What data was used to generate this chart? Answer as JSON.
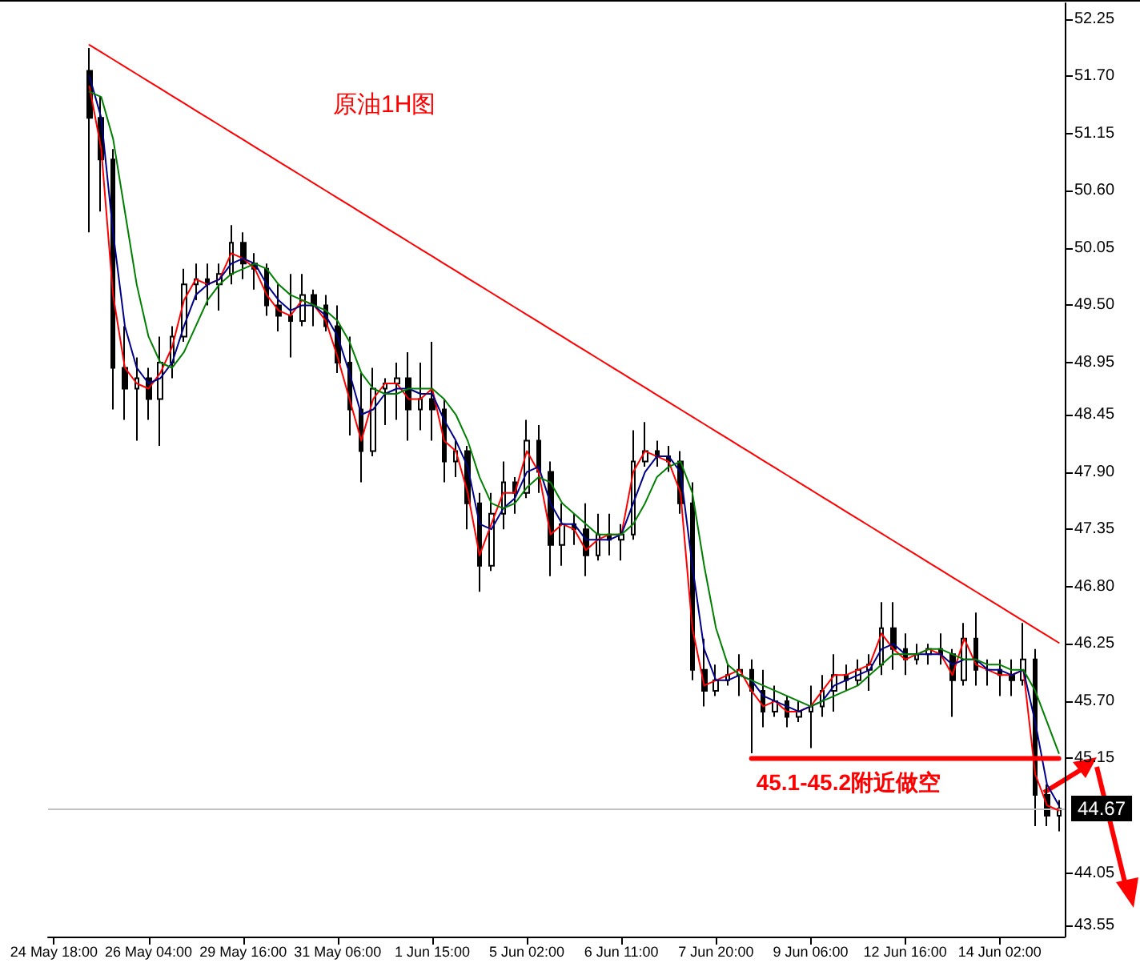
{
  "chart_data": {
    "type": "candlestick",
    "title": "原油1H图",
    "color": "#000000",
    "categories": [
      "24 May 18:00",
      null,
      null,
      null,
      null,
      null,
      null,
      null,
      "26 May 04:00",
      null,
      null,
      null,
      null,
      null,
      null,
      null,
      "29 May 16:00",
      null,
      null,
      null,
      null,
      null,
      null,
      null,
      "31 May 06:00",
      null,
      null,
      null,
      null,
      null,
      null,
      null,
      "1 Jun 15:00",
      null,
      null,
      null,
      null,
      null,
      null,
      null,
      "5 Jun 02:00",
      null,
      null,
      null,
      null,
      null,
      null,
      null,
      "6 Jun 11:00",
      null,
      null,
      null,
      null,
      null,
      null,
      null,
      "7 Jun 20:00",
      null,
      null,
      null,
      null,
      null,
      null,
      null,
      "9 Jun 06:00",
      null,
      null,
      null,
      null,
      null,
      null,
      null,
      "12 Jun 16:00",
      null,
      null,
      null,
      null,
      null,
      null,
      null,
      "14 Jun 02:00",
      null,
      null,
      null,
      null,
      null
    ],
    "ohlc": [
      null,
      null,
      null,
      [
        51.75,
        51.97,
        50.2,
        51.3
      ],
      [
        51.3,
        51.5,
        50.4,
        50.9
      ],
      [
        50.9,
        51.0,
        48.5,
        48.9
      ],
      [
        48.9,
        49.3,
        48.4,
        48.7
      ],
      [
        48.7,
        49.0,
        48.2,
        48.8
      ],
      [
        48.8,
        48.9,
        48.4,
        48.6
      ],
      [
        48.6,
        49.2,
        48.15,
        48.95
      ],
      [
        48.95,
        49.3,
        48.8,
        49.2
      ],
      [
        49.2,
        49.85,
        49.15,
        49.7
      ],
      [
        49.7,
        49.9,
        49.55,
        49.75
      ],
      [
        49.75,
        49.9,
        49.5,
        49.7
      ],
      [
        49.7,
        49.9,
        49.45,
        49.8
      ],
      [
        49.8,
        50.27,
        49.7,
        50.1
      ],
      [
        50.1,
        50.2,
        49.75,
        49.9
      ],
      [
        49.9,
        50.0,
        49.65,
        49.85
      ],
      [
        49.85,
        49.9,
        49.4,
        49.5
      ],
      [
        49.5,
        49.7,
        49.25,
        49.4
      ],
      [
        49.4,
        49.8,
        49.0,
        49.35
      ],
      [
        49.35,
        49.8,
        49.3,
        49.6
      ],
      [
        49.6,
        49.65,
        49.3,
        49.5
      ],
      [
        49.5,
        49.6,
        49.25,
        49.3
      ],
      [
        49.3,
        49.5,
        48.85,
        48.95
      ],
      [
        48.95,
        49.2,
        48.25,
        48.5
      ],
      [
        48.5,
        48.85,
        47.8,
        48.1
      ],
      [
        48.1,
        48.9,
        48.05,
        48.7
      ],
      [
        48.7,
        48.8,
        48.35,
        48.75
      ],
      [
        48.75,
        48.95,
        48.4,
        48.8
      ],
      [
        48.8,
        49.05,
        48.2,
        48.5
      ],
      [
        48.5,
        48.95,
        48.3,
        48.6
      ],
      [
        48.6,
        49.15,
        48.2,
        48.5
      ],
      [
        48.5,
        48.6,
        47.8,
        48.0
      ],
      [
        48.0,
        48.2,
        47.85,
        48.1
      ],
      [
        48.1,
        48.15,
        47.35,
        47.6
      ],
      [
        47.6,
        47.7,
        46.75,
        47.0
      ],
      [
        47.0,
        47.7,
        46.95,
        47.5
      ],
      [
        47.5,
        48.0,
        47.35,
        47.8
      ],
      [
        47.8,
        47.85,
        47.5,
        47.7
      ],
      [
        47.7,
        48.4,
        47.65,
        48.2
      ],
      [
        48.2,
        48.35,
        47.7,
        47.9
      ],
      [
        47.9,
        48.0,
        46.9,
        47.2
      ],
      [
        47.2,
        47.6,
        47.0,
        47.4
      ],
      [
        47.4,
        47.5,
        47.2,
        47.35
      ],
      [
        47.35,
        47.6,
        46.9,
        47.1
      ],
      [
        47.1,
        47.5,
        47.05,
        47.3
      ],
      [
        47.3,
        47.5,
        47.1,
        47.25
      ],
      [
        47.25,
        47.4,
        47.05,
        47.3
      ],
      [
        47.3,
        48.3,
        47.25,
        48.0
      ],
      [
        48.0,
        48.38,
        47.95,
        48.1
      ],
      [
        48.1,
        48.2,
        47.95,
        48.05
      ],
      [
        48.05,
        48.15,
        47.9,
        48.0
      ],
      [
        48.0,
        48.1,
        47.5,
        47.6
      ],
      [
        47.6,
        47.8,
        45.9,
        46.0
      ],
      [
        46.0,
        46.3,
        45.65,
        45.8
      ],
      [
        45.8,
        46.05,
        45.75,
        45.9
      ],
      [
        45.9,
        46.05,
        45.85,
        45.95
      ],
      [
        45.95,
        46.15,
        45.75,
        46.0
      ],
      [
        46.0,
        46.1,
        45.2,
        45.8
      ],
      [
        45.8,
        46.0,
        45.45,
        45.6
      ],
      [
        45.6,
        45.85,
        45.55,
        45.7
      ],
      [
        45.7,
        45.75,
        45.45,
        45.55
      ],
      [
        45.55,
        45.7,
        45.5,
        45.6
      ],
      [
        45.6,
        45.85,
        45.25,
        45.65
      ],
      [
        45.65,
        45.95,
        45.55,
        45.8
      ],
      [
        45.8,
        46.15,
        45.6,
        45.95
      ],
      [
        45.95,
        46.05,
        45.8,
        45.9
      ],
      [
        45.9,
        46.1,
        45.85,
        46.0
      ],
      [
        46.0,
        46.15,
        45.8,
        46.05
      ],
      [
        46.05,
        46.65,
        45.95,
        46.4
      ],
      [
        46.4,
        46.65,
        46.0,
        46.2
      ],
      [
        46.2,
        46.35,
        45.95,
        46.1
      ],
      [
        46.1,
        46.25,
        46.05,
        46.15
      ],
      [
        46.15,
        46.25,
        46.05,
        46.2
      ],
      [
        46.2,
        46.35,
        46.05,
        46.15
      ],
      [
        46.15,
        46.2,
        45.55,
        45.9
      ],
      [
        45.9,
        46.45,
        45.85,
        46.3
      ],
      [
        46.3,
        46.55,
        45.85,
        46.0
      ],
      [
        46.0,
        46.1,
        45.85,
        46.0
      ],
      [
        46.0,
        46.1,
        45.75,
        45.95
      ],
      [
        45.95,
        46.1,
        45.75,
        45.9
      ],
      [
        45.9,
        46.45,
        45.85,
        46.1
      ],
      [
        46.1,
        46.2,
        44.5,
        44.8
      ],
      [
        44.8,
        44.9,
        44.5,
        44.6
      ],
      [
        44.6,
        44.75,
        44.45,
        44.67
      ]
    ],
    "series": [
      {
        "type": "line",
        "color": "#ff0000",
        "values": [
          null,
          null,
          null,
          51.6,
          51.0,
          49.6,
          48.9,
          48.75,
          48.7,
          48.85,
          49.1,
          49.55,
          49.75,
          49.7,
          49.75,
          50.0,
          49.95,
          49.85,
          49.6,
          49.45,
          49.4,
          49.55,
          49.5,
          49.35,
          49.0,
          48.6,
          48.2,
          48.6,
          48.75,
          48.75,
          48.6,
          48.6,
          48.7,
          48.2,
          48.1,
          47.7,
          47.1,
          47.4,
          47.7,
          47.7,
          48.1,
          47.9,
          47.3,
          47.4,
          47.35,
          47.15,
          47.25,
          47.3,
          47.3,
          47.9,
          48.1,
          48.05,
          48.0,
          47.7,
          46.4,
          45.85,
          45.9,
          45.95,
          46.0,
          45.8,
          45.65,
          45.7,
          45.6,
          45.6,
          45.65,
          45.8,
          45.95,
          45.95,
          46.0,
          46.05,
          46.35,
          46.2,
          46.1,
          46.15,
          46.2,
          46.15,
          45.95,
          46.3,
          46.05,
          46.0,
          45.95,
          45.95,
          46.0,
          45.0,
          44.7,
          44.65
        ]
      },
      {
        "type": "line",
        "color": "#00008b",
        "values": [
          null,
          null,
          null,
          51.7,
          51.3,
          50.2,
          49.3,
          48.9,
          48.75,
          48.8,
          48.95,
          49.3,
          49.6,
          49.7,
          49.75,
          49.9,
          49.95,
          49.9,
          49.7,
          49.55,
          49.45,
          49.5,
          49.5,
          49.4,
          49.2,
          48.85,
          48.45,
          48.5,
          48.65,
          48.7,
          48.7,
          48.65,
          48.65,
          48.4,
          48.2,
          47.95,
          47.4,
          47.35,
          47.55,
          47.65,
          47.9,
          47.95,
          47.6,
          47.4,
          47.4,
          47.25,
          47.25,
          47.25,
          47.3,
          47.6,
          47.9,
          48.05,
          48.05,
          47.9,
          47.0,
          46.2,
          45.9,
          45.9,
          45.95,
          45.9,
          45.75,
          45.7,
          45.65,
          45.6,
          45.65,
          45.7,
          45.85,
          45.9,
          45.95,
          46.0,
          46.2,
          46.25,
          46.15,
          46.15,
          46.15,
          46.15,
          46.05,
          46.1,
          46.1,
          46.0,
          46.0,
          45.95,
          46.0,
          45.5,
          44.9,
          44.7
        ]
      },
      {
        "type": "line",
        "color": "#008000",
        "values": [
          null,
          null,
          null,
          51.55,
          51.5,
          51.1,
          50.4,
          49.7,
          49.2,
          48.95,
          48.9,
          49.05,
          49.3,
          49.55,
          49.7,
          49.8,
          49.85,
          49.9,
          49.85,
          49.7,
          49.6,
          49.55,
          49.5,
          49.45,
          49.35,
          49.15,
          48.85,
          48.7,
          48.65,
          48.65,
          48.7,
          48.7,
          48.7,
          48.6,
          48.45,
          48.2,
          47.85,
          47.6,
          47.55,
          47.6,
          47.75,
          47.85,
          47.8,
          47.6,
          47.5,
          47.4,
          47.3,
          47.3,
          47.3,
          47.4,
          47.6,
          47.85,
          47.95,
          48.0,
          47.7,
          47.0,
          46.4,
          46.05,
          45.95,
          45.9,
          45.85,
          45.8,
          45.75,
          45.7,
          45.65,
          45.7,
          45.75,
          45.8,
          45.85,
          45.95,
          46.05,
          46.15,
          46.15,
          46.15,
          46.2,
          46.2,
          46.15,
          46.1,
          46.1,
          46.05,
          46.05,
          46.0,
          46.0,
          45.8,
          45.5,
          45.2
        ]
      },
      {
        "type": "line",
        "color": "#ff0000",
        "values": [
          null,
          null,
          null,
          52.0,
          51.93,
          51.86,
          51.79,
          51.72,
          51.65,
          51.58,
          51.51,
          51.44,
          51.37,
          51.3,
          51.23,
          51.16,
          51.09,
          51.02,
          50.95,
          50.88,
          50.81,
          50.74,
          50.67,
          50.6,
          50.53,
          50.46,
          50.39,
          50.32,
          50.25,
          50.18,
          50.11,
          50.04,
          49.97,
          49.9,
          49.83,
          49.76,
          49.69,
          49.62,
          49.55,
          49.48,
          49.41,
          49.34,
          49.27,
          49.2,
          49.13,
          49.06,
          48.99,
          48.92,
          48.85,
          48.78,
          48.71,
          48.64,
          48.57,
          48.5,
          48.43,
          48.36,
          48.29,
          48.22,
          48.15,
          48.08,
          48.01,
          47.94,
          47.87,
          47.8,
          47.73,
          47.66,
          47.59,
          47.52,
          47.45,
          47.38,
          47.31,
          47.24,
          47.17,
          47.1,
          47.03,
          46.96,
          46.89,
          46.82,
          46.75,
          46.68,
          46.61,
          46.54,
          46.47,
          46.4,
          46.33,
          46.26
        ]
      },
      {
        "type": "line",
        "name": "45.1-45.2附近做空",
        "color": "#ff0000",
        "values": [
          null,
          null,
          null,
          null,
          null,
          null,
          null,
          null,
          null,
          null,
          null,
          null,
          null,
          null,
          null,
          null,
          null,
          null,
          null,
          null,
          null,
          null,
          null,
          null,
          null,
          null,
          null,
          null,
          null,
          null,
          null,
          null,
          null,
          null,
          null,
          null,
          null,
          null,
          null,
          null,
          null,
          null,
          null,
          null,
          null,
          null,
          null,
          null,
          null,
          null,
          null,
          null,
          null,
          null,
          null,
          null,
          null,
          null,
          null,
          45.15,
          45.15,
          45.15,
          45.15,
          45.15,
          45.15,
          45.15,
          45.15,
          45.15,
          45.15,
          45.15,
          45.15,
          45.15,
          45.15,
          45.15,
          45.15,
          45.15,
          45.15,
          45.15,
          45.15,
          45.15,
          45.15,
          45.15,
          45.15,
          45.15,
          45.15,
          45.15
        ]
      }
    ],
    "ref_lines": [
      {
        "axis": "y",
        "value": 44.67,
        "label": "44.67",
        "color": "#c0c0c0"
      }
    ],
    "ylim": [
      43.44,
      52.4
    ],
    "yticks": [
      {
        "value": 52.25,
        "label": "52.25"
      },
      {
        "value": 51.7,
        "label": "51.70"
      },
      {
        "value": 51.15,
        "label": "51.15"
      },
      {
        "value": 50.6,
        "label": "50.60"
      },
      {
        "value": 50.05,
        "label": "50.05"
      },
      {
        "value": 49.5,
        "label": "49.50"
      },
      {
        "value": 48.95,
        "label": "48.95"
      },
      {
        "value": 48.45,
        "label": "48.45"
      },
      {
        "value": 47.9,
        "label": "47.90"
      },
      {
        "value": 47.35,
        "label": "47.35"
      },
      {
        "value": 46.8,
        "label": "46.80"
      },
      {
        "value": 46.25,
        "label": "46.25"
      },
      {
        "value": 45.7,
        "label": "45.70"
      },
      {
        "value": 45.15,
        "label": "45.15"
      },
      {
        "value": 44.05,
        "label": "44.05"
      },
      {
        "value": 43.55,
        "label": "43.55"
      }
    ],
    "grid": false,
    "legend": false,
    "marker": "none",
    "line_style": "solid"
  }
}
